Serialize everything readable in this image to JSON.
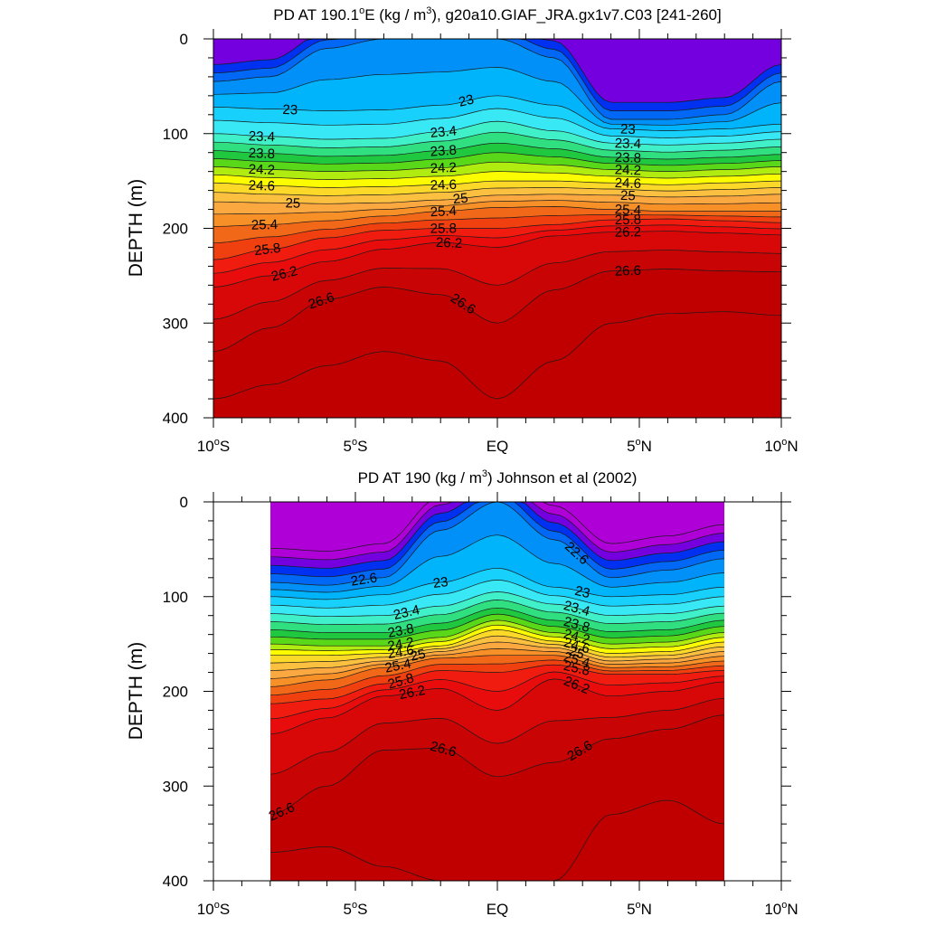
{
  "chart_data": [
    {
      "type": "contour",
      "title": "PD AT 190.1°E (kg / m³), g20a10.GIAF_JRA.gx1v7.C03 [241-260]",
      "ylabel": "DEPTH (m)",
      "xlabel": "",
      "xlim": [
        -10,
        10
      ],
      "ylim": [
        400,
        0
      ],
      "x_ticks": [
        -10,
        -5,
        0,
        5,
        10
      ],
      "x_tick_labels": [
        "10°S",
        "5°S",
        "EQ",
        "5°N",
        "10°N"
      ],
      "y_ticks": [
        0,
        100,
        200,
        300,
        400
      ],
      "y_tick_labels": [
        "0",
        "100",
        "200",
        "300",
        "400"
      ],
      "data_extent_x": [
        -10,
        10
      ],
      "levels": [
        22.2,
        22.4,
        22.6,
        22.8,
        23.0,
        23.2,
        23.4,
        23.6,
        23.8,
        24.0,
        24.2,
        24.4,
        24.6,
        24.8,
        25.0,
        25.2,
        25.4,
        25.6,
        25.8,
        26.0,
        26.2,
        26.4,
        26.6,
        26.8
      ],
      "level_depths": {
        "x": [
          -10,
          -8,
          -6,
          -4,
          -2,
          0,
          2,
          4,
          6,
          8,
          10
        ],
        "22.6": [
          45,
          40,
          10,
          0,
          0,
          0,
          20,
          85,
          85,
          80,
          45
        ],
        "23.0": [
          72,
          74,
          76,
          75,
          70,
          60,
          70,
          95,
          97,
          95,
          90
        ],
        "23.4": [
          100,
          103,
          106,
          105,
          98,
          87,
          97,
          110,
          112,
          110,
          106
        ],
        "23.8": [
          118,
          121,
          124,
          123,
          118,
          110,
          116,
          125,
          127,
          125,
          122
        ],
        "24.2": [
          135,
          138,
          140,
          139,
          136,
          130,
          133,
          138,
          140,
          138,
          135
        ],
        "24.6": [
          152,
          155,
          157,
          156,
          154,
          150,
          150,
          152,
          154,
          152,
          150
        ],
        "25.0": [
          172,
          173,
          174,
          173,
          170,
          165,
          164,
          165,
          167,
          166,
          164
        ],
        "25.4": [
          198,
          196,
          192,
          187,
          182,
          178,
          177,
          180,
          182,
          182,
          182
        ],
        "25.8": [
          233,
          222,
          210,
          202,
          200,
          200,
          196,
          191,
          190,
          192,
          194
        ],
        "26.2": [
          262,
          250,
          235,
          222,
          215,
          220,
          208,
          204,
          203,
          205,
          207
        ],
        "26.6": [
          330,
          305,
          275,
          262,
          270,
          300,
          265,
          245,
          243,
          245,
          246
        ],
        "26.8": [
          380,
          365,
          345,
          330,
          340,
          380,
          340,
          300,
          290,
          288,
          292
        ]
      },
      "contour_labels": [
        "23",
        "23",
        "22.6",
        "23",
        "23.4",
        "23.4",
        "23.4",
        "23.8",
        "23.8",
        "23.8",
        "24.2",
        "24.2",
        "24.2",
        "24.6",
        "24.6",
        "24.6",
        "25",
        "25",
        "25",
        "25.4",
        "25.4",
        "25.4",
        "25.8",
        "25.8",
        "25.8",
        "26.2",
        "26.2",
        "26.2",
        "26.6",
        "26.6",
        "26.6"
      ]
    },
    {
      "type": "contour",
      "title": "PD AT 190 (kg / m³) Johnson et al (2002)",
      "ylabel": "DEPTH (m)",
      "xlabel": "",
      "xlim": [
        -10,
        10
      ],
      "ylim": [
        400,
        0
      ],
      "x_ticks": [
        -10,
        -5,
        0,
        5,
        10
      ],
      "x_tick_labels": [
        "10°S",
        "5°S",
        "EQ",
        "5°N",
        "10°N"
      ],
      "y_ticks": [
        0,
        100,
        200,
        300,
        400
      ],
      "y_tick_labels": [
        "0",
        "100",
        "200",
        "300",
        "400"
      ],
      "data_extent_x": [
        -8,
        8
      ],
      "levels": [
        21.8,
        22.0,
        22.2,
        22.4,
        22.6,
        22.8,
        23.0,
        23.2,
        23.4,
        23.6,
        23.8,
        24.0,
        24.2,
        24.4,
        24.6,
        24.8,
        25.0,
        25.2,
        25.4,
        25.6,
        25.8,
        26.0,
        26.2,
        26.4,
        26.6,
        26.8
      ],
      "level_depths": {
        "x": [
          -8,
          -6,
          -4,
          -2,
          0,
          2,
          4,
          6,
          8
        ],
        "22.6": [
          85,
          88,
          80,
          30,
          0,
          40,
          80,
          72,
          60
        ],
        "23.0": [
          100,
          103,
          98,
          85,
          70,
          90,
          100,
          98,
          90
        ],
        "23.4": [
          118,
          121,
          120,
          110,
          95,
          108,
          120,
          118,
          110
        ],
        "23.8": [
          135,
          138,
          138,
          128,
          112,
          125,
          137,
          135,
          125
        ],
        "24.2": [
          150,
          152,
          152,
          143,
          125,
          138,
          150,
          148,
          138
        ],
        "24.6": [
          162,
          162,
          160,
          152,
          135,
          147,
          160,
          158,
          148
        ],
        "25.0": [
          178,
          175,
          168,
          158,
          148,
          154,
          168,
          166,
          158
        ],
        "25.4": [
          195,
          188,
          175,
          165,
          162,
          162,
          175,
          174,
          168
        ],
        "25.8": [
          213,
          208,
          192,
          178,
          180,
          172,
          182,
          182,
          178
        ],
        "26.2": [
          245,
          228,
          205,
          197,
          220,
          187,
          205,
          200,
          190
        ],
        "26.6": [
          330,
          300,
          262,
          260,
          290,
          275,
          250,
          240,
          225
        ],
        "26.8": [
          370,
          364,
          385,
          400,
          400,
          400,
          330,
          315,
          340
        ]
      },
      "contour_labels": [
        "22.6",
        "22.6",
        "23",
        "23",
        "23.4",
        "23.4",
        "23.8",
        "23.8",
        "24.2",
        "24.2",
        "24.6",
        "24.6",
        "25",
        "25",
        "25.4",
        "25.4",
        "25.8",
        "25.8",
        "26.2",
        "26.2",
        "26.6",
        "26.6",
        "26.6"
      ]
    }
  ]
}
